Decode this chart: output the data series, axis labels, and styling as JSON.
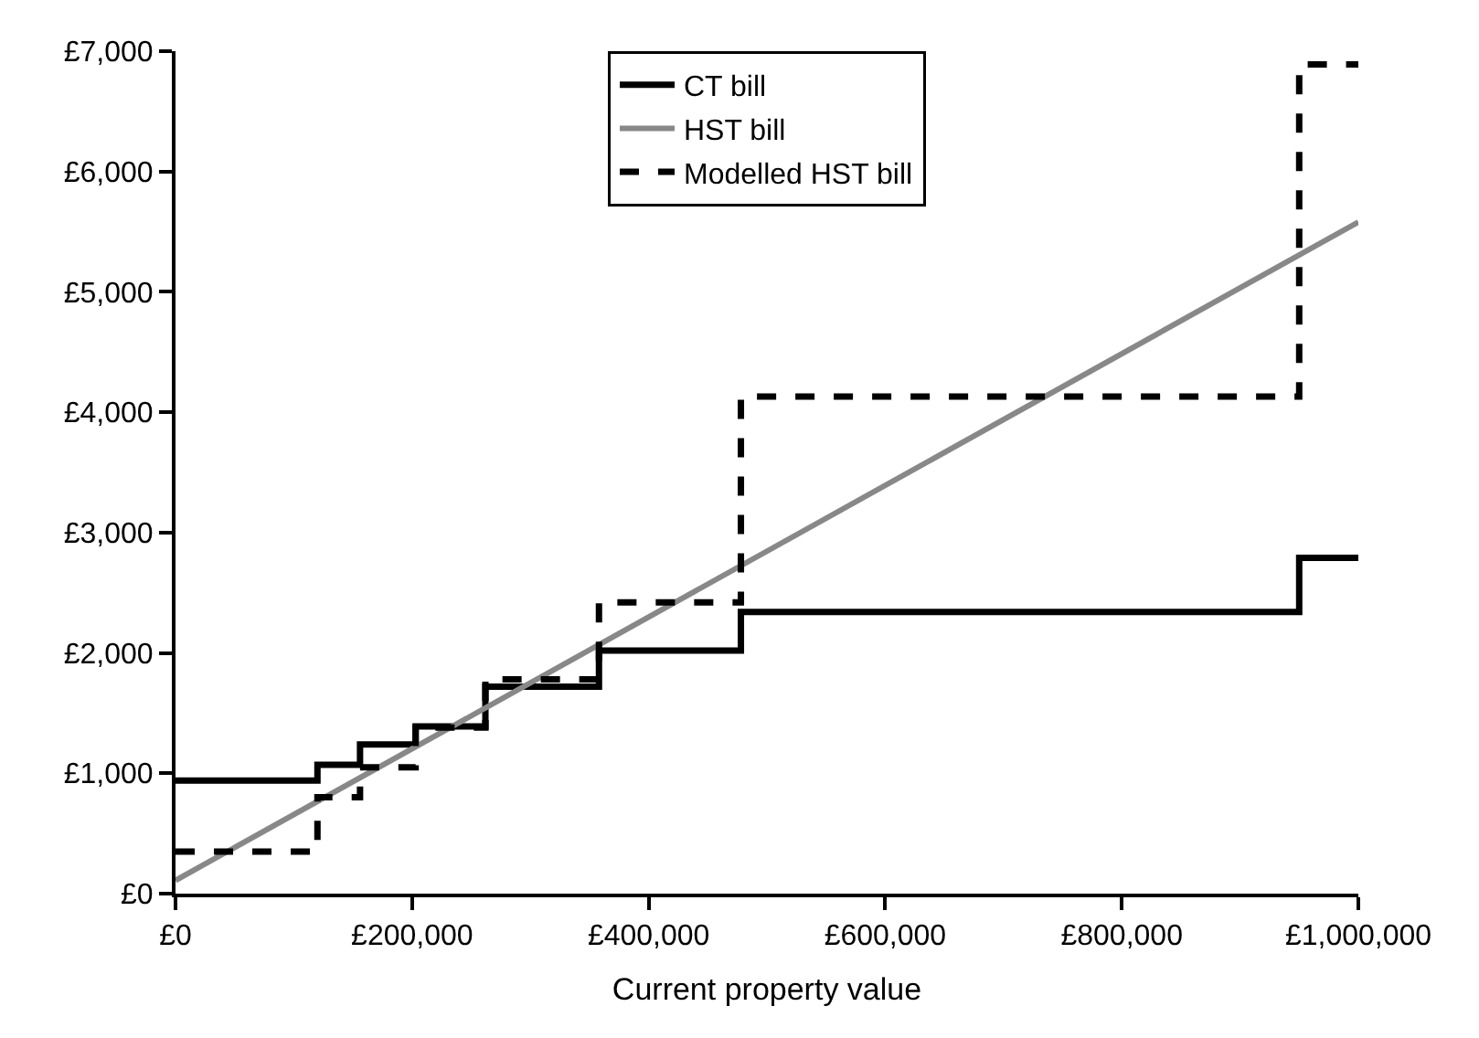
{
  "chart_data": {
    "type": "step",
    "xlabel": "Current property value",
    "xlim": [
      0,
      1000000
    ],
    "ylim": [
      0,
      7000
    ],
    "xticks": [
      {
        "value": 0,
        "label": "£0"
      },
      {
        "value": 200000,
        "label": "£200,000"
      },
      {
        "value": 400000,
        "label": "£400,000"
      },
      {
        "value": 600000,
        "label": "£600,000"
      },
      {
        "value": 800000,
        "label": "£800,000"
      },
      {
        "value": 1000000,
        "label": "£1,000,000"
      }
    ],
    "yticks": [
      {
        "value": 0,
        "label": "£0"
      },
      {
        "value": 1000,
        "label": "£1,000"
      },
      {
        "value": 2000,
        "label": "£2,000"
      },
      {
        "value": 3000,
        "label": "£3,000"
      },
      {
        "value": 4000,
        "label": "£4,000"
      },
      {
        "value": 5000,
        "label": "£5,000"
      },
      {
        "value": 6000,
        "label": "£6,000"
      },
      {
        "value": 7000,
        "label": "£7,000"
      }
    ],
    "legend": "top",
    "marker": "none",
    "series": [
      {
        "name": "CT bill",
        "color": "#000000",
        "line_style": "solid",
        "x": [
          0,
          120000,
          156000,
          203000,
          262000,
          358000,
          478000,
          950000,
          1000000
        ],
        "values": [
          940,
          1070,
          1240,
          1390,
          1720,
          2020,
          2340,
          2790,
          2790
        ]
      },
      {
        "name": "HST bill",
        "type": "line",
        "color": "#888888",
        "line_style": "solid",
        "x": [
          0,
          1000000
        ],
        "values": [
          110,
          5580
        ]
      },
      {
        "name": "Modelled HST bill",
        "color": "#000000",
        "line_style": "dashed",
        "x": [
          0,
          120000,
          156000,
          203000,
          262000,
          358000,
          478000,
          950000,
          1000000
        ],
        "values": [
          350,
          800,
          1050,
          1380,
          1780,
          2420,
          4130,
          6890,
          6890
        ]
      }
    ]
  }
}
